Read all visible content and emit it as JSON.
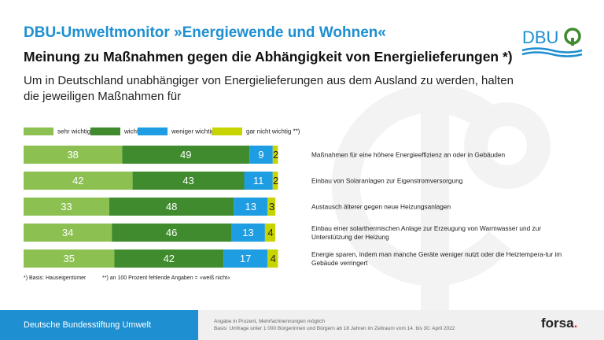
{
  "header": {
    "title": "DBU-Umweltmonitor »Energiewende und Wohnen«",
    "subtitle": "Meinung zu Maßnahmen gegen die Abhängigkeit von Energielieferungen *)",
    "question": "Um in Deutschland unabhängiger von Energielieferungen aus dem Ausland zu werden, halten die jeweiligen Maßnahmen für"
  },
  "logo": {
    "text": "DBU",
    "icon": "dbu-tree-logo"
  },
  "colors": {
    "title": "#1e8fd0",
    "sehr_wichtig": "#8cc152",
    "wichtig": "#3f8b2d",
    "weniger_wichtig": "#1e9de2",
    "gar_nicht_wichtig": "#c8d400",
    "footer_blue": "#1e8fd0"
  },
  "chart_data": {
    "type": "bar",
    "orientation": "horizontal",
    "stacked": true,
    "categories": [
      "Maßnahmen für eine höhere Energieeffizienz an oder in Gebäuden",
      "Einbau von Solaranlagen zur Eigenstromversorgung",
      "Austausch älterer gegen neue Heizungsanlagen",
      "Einbau einer solarthermischen Anlage zur Erzeugung von Warmwasser und zur Unterstützung der Heizung",
      "Energie sparen, indem man manche Geräte weniger nutzt oder die Heiztempera-tur im Gebäude verringert"
    ],
    "series": [
      {
        "name": "sehr wichtig",
        "values": [
          38,
          42,
          33,
          34,
          35
        ]
      },
      {
        "name": "wichtig",
        "values": [
          49,
          43,
          48,
          46,
          42
        ]
      },
      {
        "name": "weniger wichtig",
        "values": [
          9,
          11,
          13,
          13,
          17
        ]
      },
      {
        "name": "gar nicht wichtig **)",
        "values": [
          2,
          2,
          3,
          4,
          4
        ]
      }
    ],
    "unit": "Prozent"
  },
  "notes": {
    "basis": "*) Basis: Hauseigentümer",
    "missing": "**) an 100 Prozent fehlende Angaben = »weiß nicht«"
  },
  "footer": {
    "org": "Deutsche Bundesstiftung Umwelt",
    "source_line1": "Angabe in Prozent, Mehrfachnennungen möglich",
    "source_line2": "Basis: Umfrage unter 1 000 Bürgerinnen und Bürgern ab 18 Jahren im Zeitraum vom 14. bis 30. April 2022",
    "brand": "forsa",
    "brand_dot": "."
  }
}
